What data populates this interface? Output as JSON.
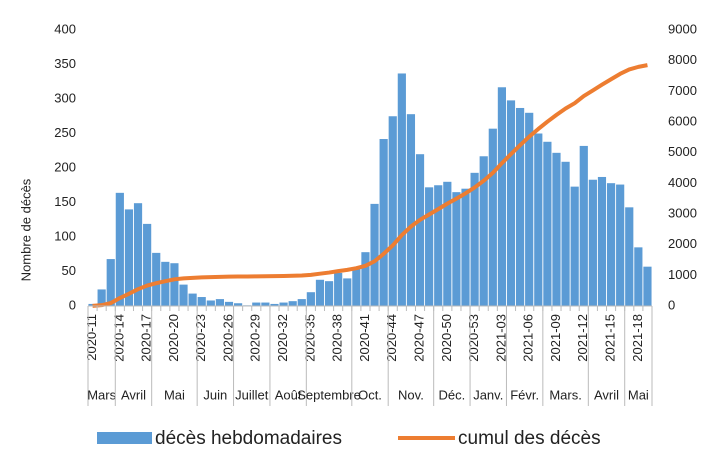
{
  "chart_data": {
    "type": "bar_line",
    "y_axis_label": "Nombre de décès",
    "categories": [
      "2020-11",
      null,
      null,
      "2020-14",
      null,
      null,
      "2020-17",
      null,
      null,
      "2020-20",
      null,
      null,
      "2020-23",
      null,
      null,
      "2020-26",
      null,
      null,
      "2020-29",
      null,
      null,
      "2020-32",
      null,
      null,
      "2020-35",
      null,
      null,
      "2020-38",
      null,
      null,
      "2020-41",
      null,
      null,
      "2020-44",
      null,
      null,
      "2020-47",
      null,
      null,
      "2020-50",
      null,
      null,
      "2020-53",
      null,
      null,
      "2021-03",
      null,
      null,
      "2021-06",
      null,
      null,
      "2021-09",
      null,
      null,
      "2021-12",
      null,
      null,
      "2021-15",
      null,
      null,
      "2021-18",
      null
    ],
    "month_groups": [
      {
        "label": "Mars",
        "count": 3
      },
      {
        "label": "Avril",
        "count": 4
      },
      {
        "label": "Mai",
        "count": 5
      },
      {
        "label": "Juin",
        "count": 4
      },
      {
        "label": "Juillet",
        "count": 4
      },
      {
        "label": "Août",
        "count": 4
      },
      {
        "label": "Septembre",
        "count": 5
      },
      {
        "label": "Oct.",
        "count": 4
      },
      {
        "label": "Nov.",
        "count": 5
      },
      {
        "label": "Déc.",
        "count": 4
      },
      {
        "label": "Janv.",
        "count": 4
      },
      {
        "label": "Févr.",
        "count": 4
      },
      {
        "label": "Mars.",
        "count": 5
      },
      {
        "label": "Avril",
        "count": 4
      },
      {
        "label": "Mai",
        "count": 3
      }
    ],
    "series": [
      {
        "name": "décès hebdomadaires",
        "color": "#5b9bd5",
        "kind": "bar",
        "values": [
          3,
          24,
          68,
          164,
          140,
          149,
          119,
          77,
          64,
          62,
          31,
          18,
          13,
          8,
          10,
          6,
          4,
          1,
          5,
          5,
          3,
          5,
          7,
          10,
          20,
          38,
          36,
          48,
          40,
          55,
          78,
          148,
          242,
          275,
          337,
          278,
          220,
          172,
          175,
          180,
          165,
          170,
          193,
          217,
          257,
          317,
          298,
          287,
          280,
          250,
          238,
          222,
          209,
          173,
          232,
          183,
          187,
          178,
          176,
          143,
          85,
          57
        ]
      },
      {
        "name": "cumul des décès",
        "color": "#ed7d31",
        "kind": "line",
        "axis": "y2",
        "values": [
          3,
          27,
          95,
          259,
          399,
          548,
          667,
          744,
          808,
          870,
          901,
          919,
          932,
          940,
          950,
          956,
          960,
          961,
          966,
          971,
          974,
          979,
          986,
          996,
          1016,
          1054,
          1090,
          1138,
          1178,
          1233,
          1311,
          1459,
          1701,
          1976,
          2313,
          2591,
          2811,
          2983,
          3158,
          3338,
          3503,
          3673,
          3866,
          4083,
          4340,
          4657,
          4955,
          5242,
          5522,
          5772,
          6010,
          6232,
          6441,
          6614,
          6846,
          7029,
          7216,
          7394,
          7570,
          7713,
          7798,
          7855
        ]
      }
    ],
    "ylim": [
      0,
      400
    ],
    "yticks": [
      0,
      50,
      100,
      150,
      200,
      250,
      300,
      350,
      400
    ],
    "y2lim": [
      0,
      9000
    ],
    "y2ticks": [
      0,
      1000,
      2000,
      3000,
      4000,
      5000,
      6000,
      7000,
      8000,
      9000
    ],
    "legend": "bottom"
  }
}
